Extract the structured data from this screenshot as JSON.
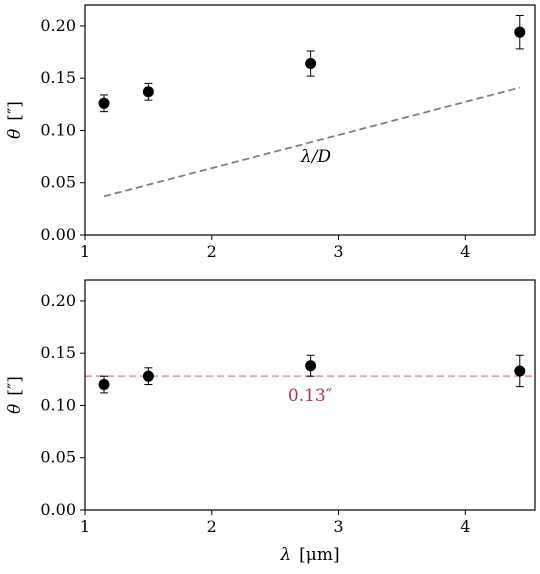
{
  "chart_data": [
    {
      "type": "scatter",
      "ylabel_symbol": "θ",
      "ylabel_unit": "[″]",
      "xlim": [
        1.0,
        4.55
      ],
      "ylim": [
        0.0,
        0.22
      ],
      "xticks": [
        1,
        2,
        3,
        4
      ],
      "xtick_labels": [
        "1",
        "2",
        "3",
        "4"
      ],
      "yticks": [
        0.0,
        0.05,
        0.1,
        0.15,
        0.2
      ],
      "ytick_labels": [
        "0.00",
        "0.05",
        "0.10",
        "0.15",
        "0.20"
      ],
      "grid": false,
      "series": [
        {
          "x": [
            1.15,
            1.5,
            2.78,
            4.43
          ],
          "y": [
            0.126,
            0.137,
            0.164,
            0.194
          ],
          "yerr": [
            0.008,
            0.008,
            0.012,
            0.016
          ]
        }
      ],
      "line": {
        "label": "λ/D",
        "x": [
          1.15,
          4.43
        ],
        "y": [
          0.037,
          0.141
        ],
        "color": "#808080",
        "style": "dashed"
      }
    },
    {
      "type": "scatter",
      "xlabel": "λ [μm]",
      "ylabel_symbol": "θ",
      "ylabel_unit": "[″]",
      "xlim": [
        1.0,
        4.55
      ],
      "ylim": [
        0.0,
        0.22
      ],
      "xticks": [
        1,
        2,
        3,
        4
      ],
      "xtick_labels": [
        "1",
        "2",
        "3",
        "4"
      ],
      "yticks": [
        0.0,
        0.05,
        0.1,
        0.15,
        0.2
      ],
      "ytick_labels": [
        "0.00",
        "0.05",
        "0.10",
        "0.15",
        "0.20"
      ],
      "grid": false,
      "series": [
        {
          "x": [
            1.15,
            1.5,
            2.78,
            4.43
          ],
          "y": [
            0.12,
            0.128,
            0.138,
            0.133
          ],
          "yerr": [
            0.008,
            0.008,
            0.01,
            0.015
          ]
        }
      ],
      "hline": {
        "label": "0.13″",
        "y": 0.128,
        "color": "#e8a0b0",
        "label_color": "#b03060",
        "style": "dashed"
      }
    }
  ]
}
